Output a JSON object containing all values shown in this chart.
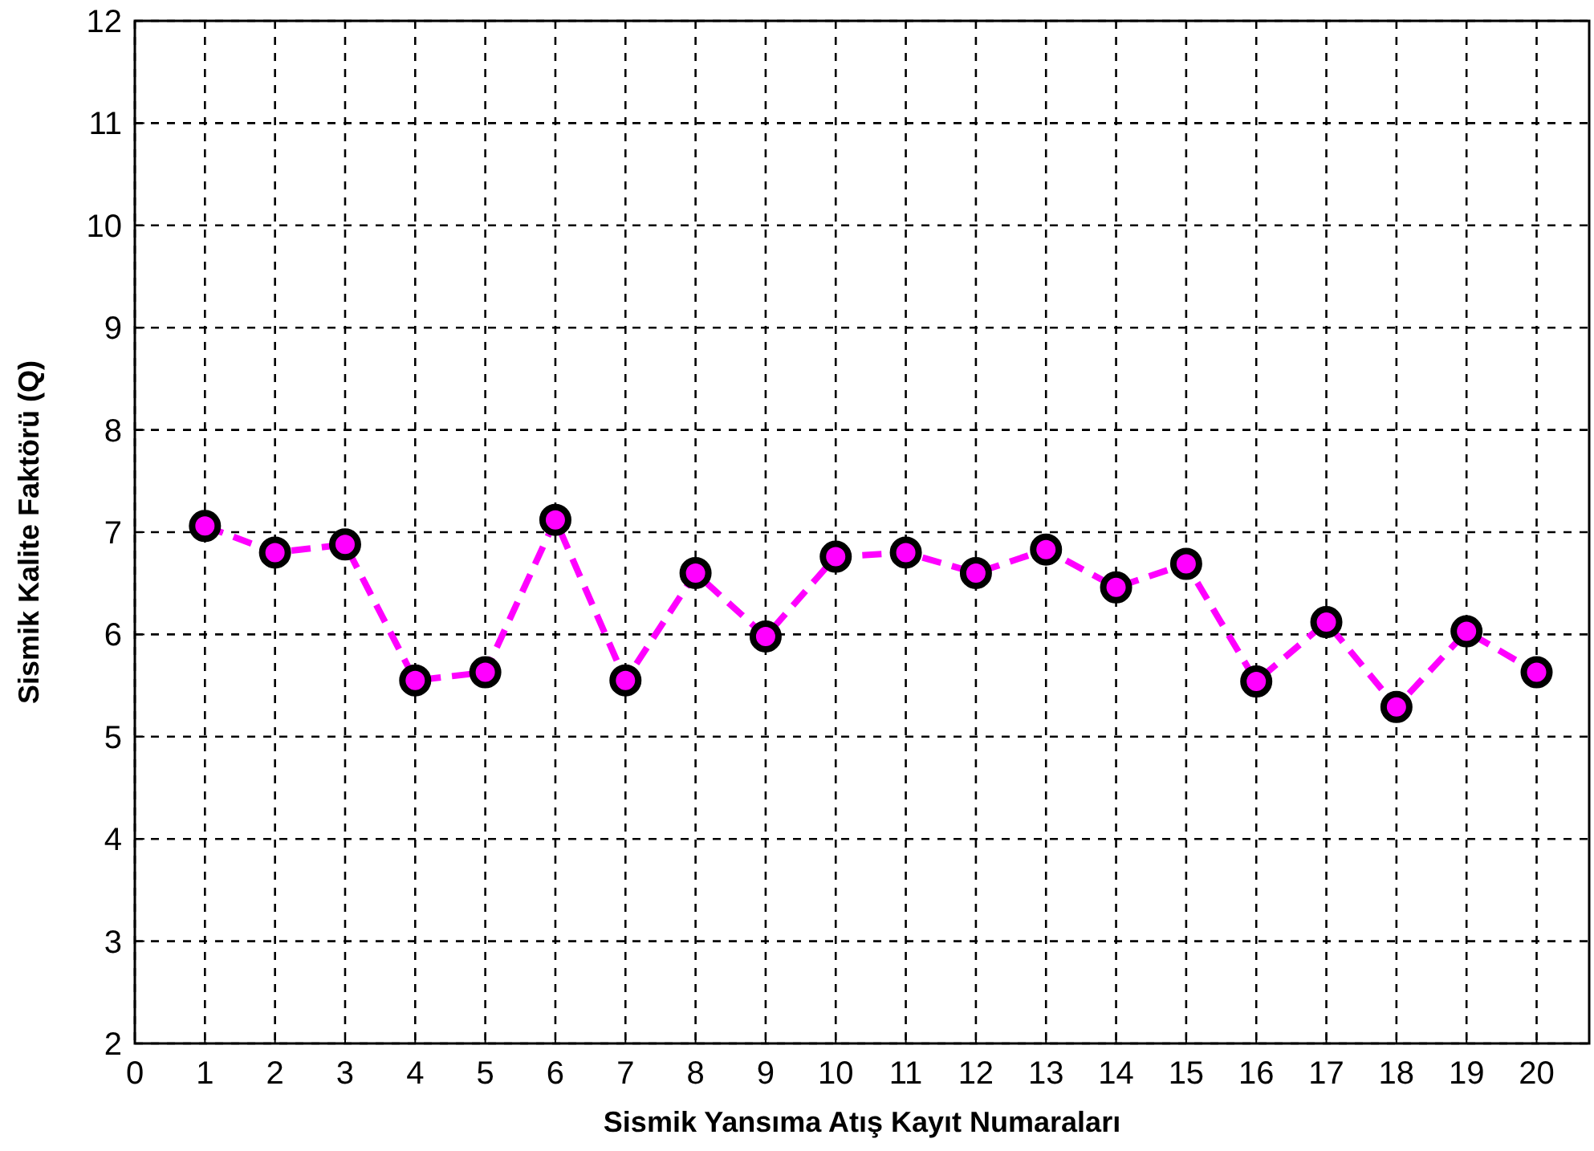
{
  "chart_data": {
    "type": "line",
    "xlabel": "Sismik Yansıma Atış Kayıt Numaraları",
    "ylabel": "Sismik Kalite Faktörü (Q)",
    "x": [
      1,
      2,
      3,
      4,
      5,
      6,
      7,
      8,
      9,
      10,
      11,
      12,
      13,
      14,
      15,
      16,
      17,
      18,
      19,
      20
    ],
    "series": [
      {
        "color": "#ff00ff",
        "values": [
          7.06,
          6.8,
          6.88,
          5.55,
          5.63,
          7.12,
          5.55,
          6.6,
          5.98,
          6.76,
          6.8,
          6.6,
          6.83,
          6.46,
          6.69,
          5.54,
          6.12,
          5.29,
          6.03,
          5.63
        ]
      }
    ],
    "xlim": [
      0,
      20.75
    ],
    "xticks": [
      0,
      1,
      2,
      3,
      4,
      5,
      6,
      7,
      8,
      9,
      10,
      11,
      12,
      13,
      14,
      15,
      16,
      17,
      18,
      19,
      20
    ],
    "ylim": [
      2,
      12
    ],
    "yticks": [
      2,
      3,
      4,
      5,
      6,
      7,
      8,
      9,
      10,
      11,
      12
    ],
    "grid": true,
    "marker": "circle",
    "line_style": "dashed"
  }
}
